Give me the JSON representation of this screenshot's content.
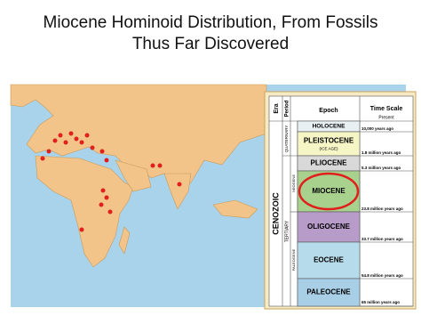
{
  "title_line_1": "Miocene Hominoid Distribution, From Fossils",
  "title_line_2": "Thus Far Discovered",
  "timescale": {
    "headers": {
      "era": "Era",
      "period": "Period",
      "epoch": "Epoch",
      "time_scale": "Time Scale"
    },
    "present": "Present",
    "era": "CENOZOIC",
    "periods": {
      "quaternary": "QUATERNARY",
      "tertiary": "TERTIARY"
    },
    "subperiods": {
      "neogene": "NEOGENE",
      "paleogene": "PALEOGENE"
    },
    "epochs": [
      {
        "name": "HOLOCENE",
        "time": "10,000 years ago"
      },
      {
        "name": "PLEISTOCENE",
        "note": "(ICE AGE)",
        "time": "1.8 million years ago"
      },
      {
        "name": "PLIOCENE",
        "time": "5.3 million years ago"
      },
      {
        "name": "MIOCENE",
        "time": "23.8 million years ago"
      },
      {
        "name": "OLIGOCENE",
        "time": "33.7 million years ago"
      },
      {
        "name": "EOCENE",
        "time": "54.8 million years ago"
      },
      {
        "name": "PALEOCENE",
        "time": "65 million years ago"
      }
    ]
  }
}
